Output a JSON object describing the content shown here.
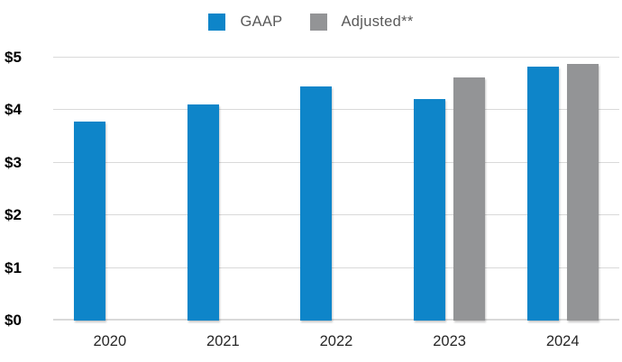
{
  "chart_data": {
    "type": "bar",
    "title": "",
    "categories": [
      "2020",
      "2021",
      "2022",
      "2023",
      "2024"
    ],
    "series": [
      {
        "name": "GAAP",
        "color": "#0E85C9",
        "values": [
          3.79,
          4.11,
          4.45,
          4.22,
          4.83
        ]
      },
      {
        "name": "Adjusted**",
        "color": "#939496",
        "values": [
          null,
          null,
          null,
          4.63,
          4.88
        ]
      }
    ],
    "y_axis": {
      "min": 0,
      "max": 5,
      "step": 1,
      "tick_labels": [
        "$0",
        "$1",
        "$2",
        "$3",
        "$4",
        "$5"
      ]
    },
    "grid": "horizontal",
    "legend_position": "top"
  },
  "legend": {
    "items": [
      {
        "label": "GAAP",
        "color": "#0E85C9"
      },
      {
        "label": "Adjusted**",
        "color": "#939496"
      }
    ]
  },
  "colors": {
    "background": "#FFFFFF",
    "gridline": "#D9D9D9",
    "y_label_text": "#000000",
    "x_label_text": "#262626",
    "legend_text": "#595959"
  }
}
